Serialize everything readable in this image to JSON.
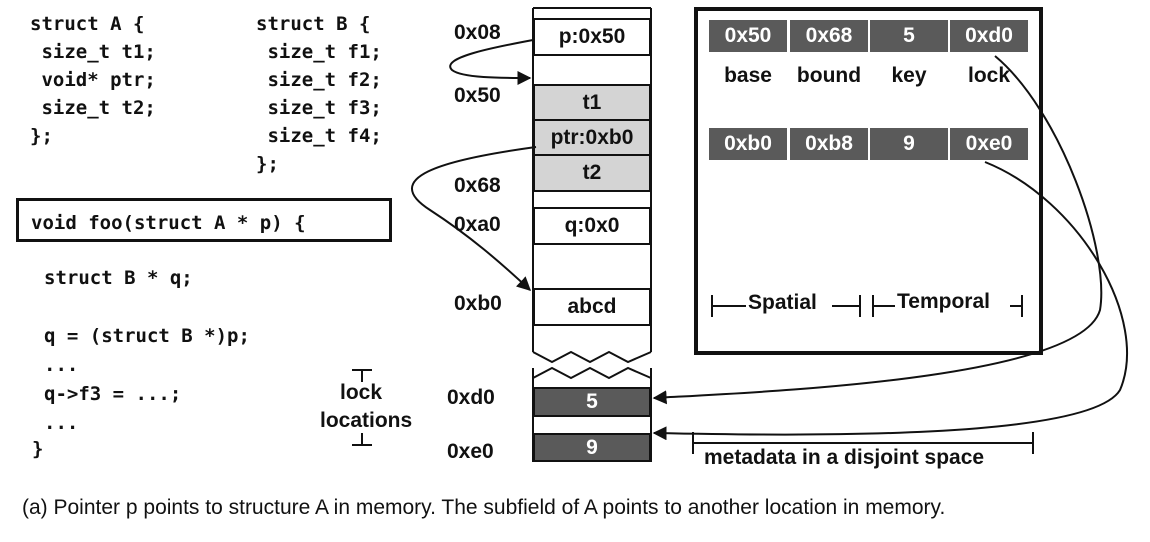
{
  "code": {
    "struct_a": [
      "struct A {",
      " size_t t1;",
      " void* ptr;",
      " size_t t2;",
      "};"
    ],
    "struct_b": [
      "struct B {",
      " size_t f1;",
      " size_t f2;",
      " size_t f3;",
      " size_t f4;",
      "};"
    ],
    "foo_signature": "void foo(struct A * p) {",
    "foo_body": [
      "struct B * q;",
      "",
      "q = (struct B *)p;",
      "...",
      "q->f3 = ...;",
      "...",
      "}"
    ]
  },
  "memory": {
    "addresses": {
      "a08": "0x08",
      "a50": "0x50",
      "a68": "0x68",
      "aa0": "0xa0",
      "ab0": "0xb0",
      "ad0": "0xd0",
      "ae0": "0xe0"
    },
    "cells": {
      "p": "p:0x50",
      "t1": "t1",
      "ptr": "ptr:0xb0",
      "t2": "t2",
      "q": "q:0x0",
      "abcd": "abcd",
      "lock1": "5",
      "lock2": "9"
    }
  },
  "lock_locations_label": [
    "lock",
    "locations"
  ],
  "metadata": {
    "row1": [
      "0x50",
      "0x68",
      "5",
      "0xd0"
    ],
    "labels": [
      "base",
      "bound",
      "key",
      "lock"
    ],
    "row2": [
      "0xb0",
      "0xb8",
      "9",
      "0xe0"
    ],
    "spatial_label": "Spatial",
    "temporal_label": "Temporal",
    "disjoint_label": "metadata in a disjoint space"
  },
  "caption": "(a) Pointer p points to structure A in memory. The subfield of A points to another location in memory.",
  "colors": {
    "grey_cell": "#d4d4d4",
    "dark_cell": "#5a5a5a",
    "line": "#111111"
  }
}
